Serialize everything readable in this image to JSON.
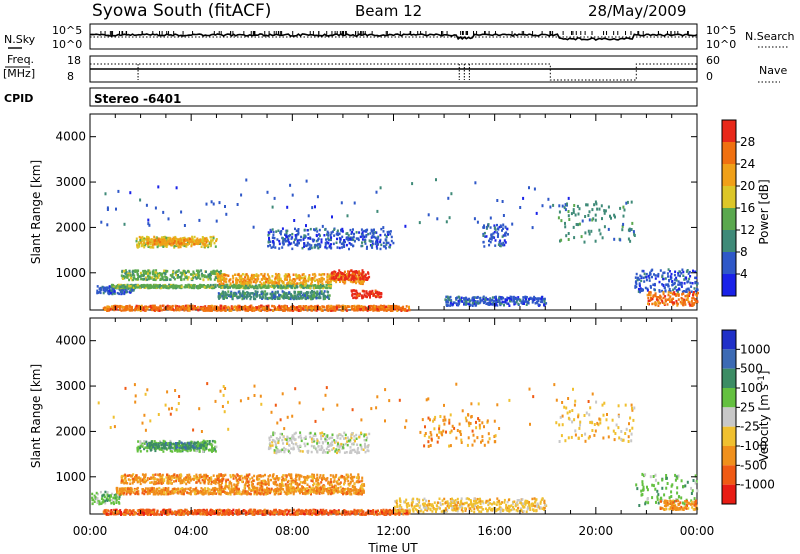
{
  "header": {
    "title": "Syowa South (fitACF)",
    "beam": "Beam 12",
    "date": "28/May/2009"
  },
  "top_panels": {
    "nsky_label": "N.Sky",
    "nsearch_label": "N.Search",
    "nsky_ticks": [
      "10^5",
      "10^0"
    ],
    "freq_label_1": "Freq.",
    "freq_label_2": "[MHz]",
    "freq_ticks": [
      "18",
      "8"
    ],
    "nave_label": "Nave",
    "nave_ticks": [
      "60",
      "0"
    ],
    "cpid_label": "CPID",
    "cpid_value": "Stereo -6401"
  },
  "axes": {
    "ylabel": "Slant Range [km]",
    "xlabel": "Time UT",
    "y_ticks": [
      1000,
      2000,
      3000,
      4000
    ],
    "x_ticks": [
      "00:00",
      "04:00",
      "08:00",
      "12:00",
      "16:00",
      "20:00",
      "00:00"
    ]
  },
  "colorbars": {
    "power": {
      "label": "Power [dB]",
      "ticks": [
        "4",
        "8",
        "12",
        "16",
        "20",
        "24",
        "28"
      ],
      "colors": [
        "#1a22e8",
        "#2f58c8",
        "#3f8a78",
        "#5aa84e",
        "#dcc628",
        "#f0a018",
        "#f07010",
        "#e8281a"
      ]
    },
    "velocity": {
      "label": "Velocity [m s",
      "label_sup": "-1",
      "label_end": "]",
      "ticks": [
        "1000",
        "500",
        "100",
        "25",
        "-25",
        "-100",
        "-500",
        "-1000"
      ],
      "colors": [
        "#2030c8",
        "#3c6ab4",
        "#3c8c64",
        "#64c040",
        "#c8c8c8",
        "#f0c030",
        "#f0901c",
        "#f05a14",
        "#e81c14"
      ]
    }
  },
  "chart_data": [
    {
      "type": "heatmap",
      "name": "power",
      "x_range_hours": [
        0,
        24
      ],
      "ylim": [
        180,
        4500
      ],
      "regions": [
        {
          "t": [
            0.2,
            1.7
          ],
          "r": [
            560,
            730
          ],
          "color_index": 1
        },
        {
          "t": [
            0.5,
            12.6
          ],
          "r": [
            190,
            300
          ],
          "color_index": 6
        },
        {
          "t": [
            0.8,
            9.5
          ],
          "r": [
            690,
            760
          ],
          "color_index": 3
        },
        {
          "t": [
            1.2,
            5.2
          ],
          "r": [
            870,
            1080
          ],
          "color_index": 3
        },
        {
          "t": [
            1.8,
            5.0
          ],
          "r": [
            1580,
            1820
          ],
          "color_index": 4
        },
        {
          "t": [
            2.2,
            4.6
          ],
          "r": [
            1650,
            1780
          ],
          "color_index": 5
        },
        {
          "t": [
            5.0,
            10.8
          ],
          "r": [
            780,
            1000
          ],
          "color_index": 5
        },
        {
          "t": [
            9.5,
            11.0
          ],
          "r": [
            870,
            1080
          ],
          "color_index": 7
        },
        {
          "t": [
            10.3,
            11.5
          ],
          "r": [
            470,
            640
          ],
          "color_index": 7
        },
        {
          "t": [
            7.0,
            12.0
          ],
          "r": [
            1550,
            2000
          ],
          "color_index": 1
        },
        {
          "t": [
            5.0,
            9.5
          ],
          "r": [
            450,
            620
          ],
          "color_index": 2
        },
        {
          "t": [
            14.0,
            18.0
          ],
          "r": [
            300,
            500
          ],
          "color_index": 1
        },
        {
          "t": [
            15.5,
            16.5
          ],
          "r": [
            1600,
            2100
          ],
          "color_index": 1
        },
        {
          "t": [
            18.5,
            21.5
          ],
          "r": [
            1700,
            2600
          ],
          "color_index": 2
        },
        {
          "t": [
            21.5,
            24.0
          ],
          "r": [
            600,
            1100
          ],
          "color_index": 1
        },
        {
          "t": [
            22.0,
            24.0
          ],
          "r": [
            300,
            600
          ],
          "color_index": 6
        },
        {
          "t": [
            0.3,
            20.0
          ],
          "r": [
            2000,
            3100
          ],
          "color_index": 1
        }
      ]
    },
    {
      "type": "heatmap",
      "name": "velocity",
      "x_range_hours": [
        0,
        24
      ],
      "ylim": [
        180,
        4500
      ],
      "regions": [
        {
          "t": [
            0.0,
            1.2
          ],
          "r": [
            420,
            700
          ],
          "color_index": 3
        },
        {
          "t": [
            0.5,
            12.6
          ],
          "r": [
            190,
            300
          ],
          "color_index": 7
        },
        {
          "t": [
            1.0,
            10.8
          ],
          "r": [
            640,
            780
          ],
          "color_index": 6
        },
        {
          "t": [
            1.2,
            5.2
          ],
          "r": [
            870,
            1080
          ],
          "color_index": 6
        },
        {
          "t": [
            1.8,
            5.0
          ],
          "r": [
            1580,
            1820
          ],
          "color_index": 3
        },
        {
          "t": [
            2.2,
            4.6
          ],
          "r": [
            1650,
            1780
          ],
          "color_index": 2
        },
        {
          "t": [
            5.0,
            10.8
          ],
          "r": [
            780,
            1080
          ],
          "color_index": 6
        },
        {
          "t": [
            7.0,
            11.0
          ],
          "r": [
            1550,
            2000
          ],
          "color_index": 4
        },
        {
          "t": [
            12.0,
            18.0
          ],
          "r": [
            250,
            550
          ],
          "color_index": 5
        },
        {
          "t": [
            13.0,
            16.0
          ],
          "r": [
            1700,
            2400
          ],
          "color_index": 6
        },
        {
          "t": [
            18.5,
            21.5
          ],
          "r": [
            1800,
            2700
          ],
          "color_index": 5
        },
        {
          "t": [
            21.5,
            24.0
          ],
          "r": [
            400,
            1100
          ],
          "color_index": 3
        },
        {
          "t": [
            22.5,
            24.0
          ],
          "r": [
            300,
            500
          ],
          "color_index": 6
        },
        {
          "t": [
            0.3,
            20.0
          ],
          "r": [
            2000,
            3100
          ],
          "color_index": 6
        }
      ]
    }
  ]
}
